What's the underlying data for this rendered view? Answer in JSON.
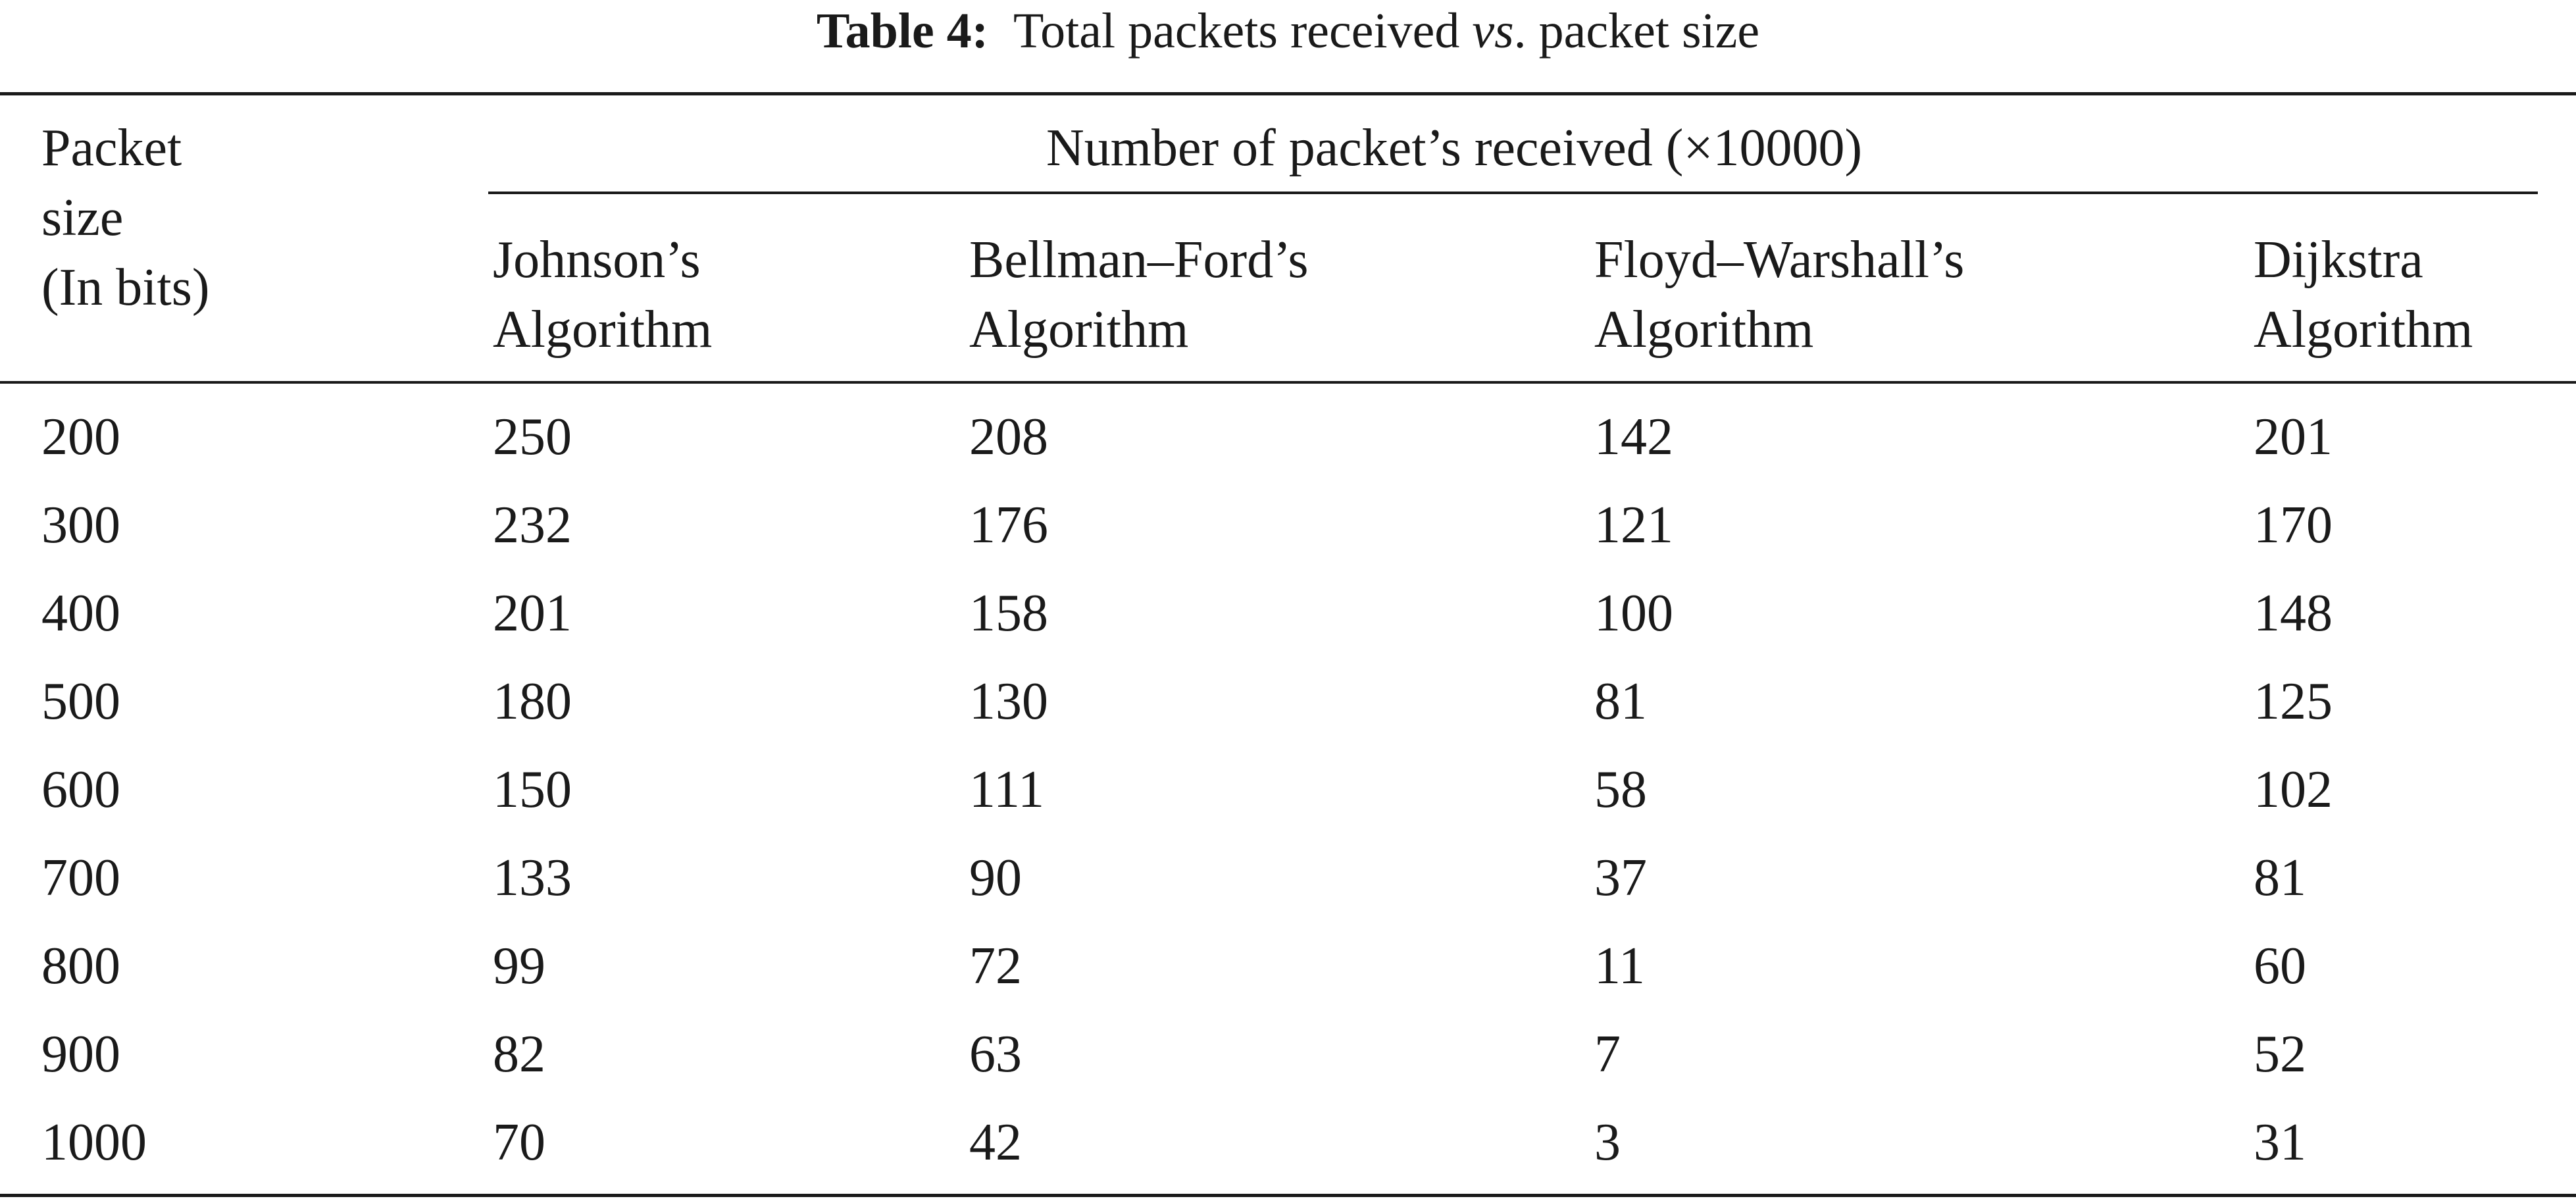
{
  "caption": {
    "label": "Table 4:",
    "text_before": "Total packets received ",
    "text_italic": "vs",
    "text_after": ". packet size"
  },
  "table": {
    "row_header": [
      "Packet",
      "size",
      "(In bits)"
    ],
    "group_header": "Number of packet’s received (×10000)",
    "columns": [
      [
        "Johnson’s",
        "Algorithm"
      ],
      [
        "Bellman–Ford’s",
        "Algorithm"
      ],
      [
        "Floyd–Warshall’s",
        "Algorithm"
      ],
      [
        "Dijkstra",
        "Algorithm"
      ]
    ],
    "rows": [
      [
        "200",
        "250",
        "208",
        "142",
        "201"
      ],
      [
        "300",
        "232",
        "176",
        "121",
        "170"
      ],
      [
        "400",
        "201",
        "158",
        "100",
        "148"
      ],
      [
        "500",
        "180",
        "130",
        "81",
        "125"
      ],
      [
        "600",
        "150",
        "111",
        "58",
        "102"
      ],
      [
        "700",
        "133",
        "90",
        "37",
        "81"
      ],
      [
        "800",
        "99",
        "72",
        "11",
        "60"
      ],
      [
        "900",
        "82",
        "63",
        "7",
        "52"
      ],
      [
        "1000",
        "70",
        "42",
        "3",
        "31"
      ]
    ]
  }
}
